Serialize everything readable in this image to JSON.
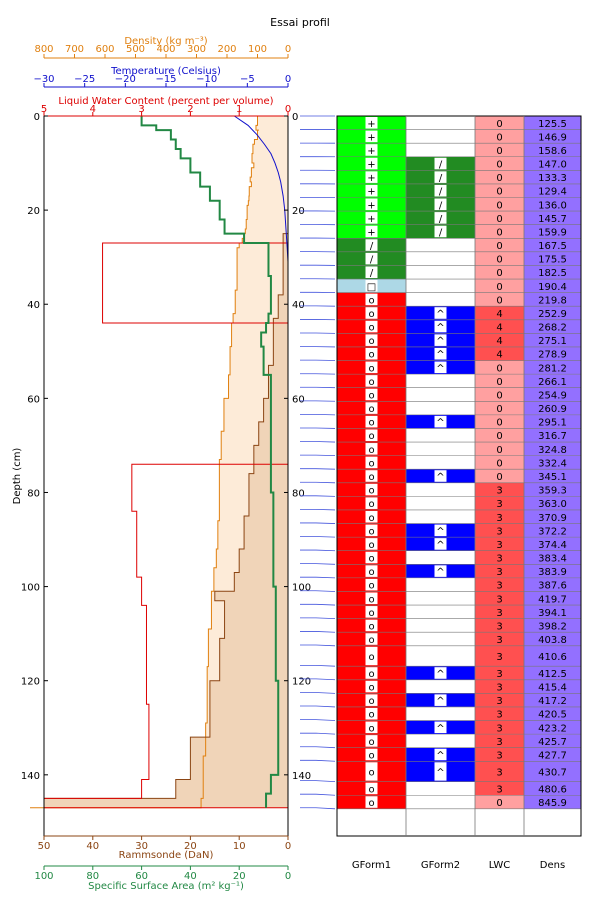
{
  "page": {
    "title": "Essai profil"
  },
  "colors": {
    "density": "#e08010",
    "temperature": "#1010cc",
    "lwc": "#dd0000",
    "ssa": "#228844",
    "rammsonde": "#8b4513",
    "density_fill": "#fdebd8",
    "ram_fill": "#f0d4b8",
    "link": "#4455dd"
  },
  "chart_data": [
    {
      "type": "line",
      "title": "",
      "ylabel": "Depth (cm)",
      "ylim": [
        0,
        153
      ],
      "yticks": [
        "0",
        "20",
        "40",
        "60",
        "80",
        "100",
        "120",
        "140"
      ],
      "inner_yticks": [
        "0",
        "20",
        "40",
        "60",
        "80",
        "100",
        "120",
        "140"
      ],
      "axes": {
        "density": {
          "label": "Density (kg m⁻³)",
          "range": [
            800,
            0
          ],
          "ticks": [
            "800",
            "700",
            "600",
            "500",
            "400",
            "300",
            "200",
            "100",
            "0"
          ]
        },
        "temperature": {
          "label": "Temperature (Celsius)",
          "range": [
            -30,
            0
          ],
          "ticks": [
            "−30",
            "−25",
            "−20",
            "−15",
            "−10",
            "−5",
            "0"
          ]
        },
        "lwc": {
          "label": "Liquid Water Content (percent per volume)",
          "range": [
            5,
            0
          ],
          "ticks": [
            "5",
            "4",
            "3",
            "2",
            "1",
            "0"
          ]
        },
        "rammsonde": {
          "label": "Rammsonde (DaN)",
          "range": [
            50,
            0
          ],
          "ticks": [
            "50",
            "40",
            "30",
            "20",
            "10",
            "0"
          ]
        },
        "ssa": {
          "label": "Specific Surface Area (m² kg⁻¹)",
          "range": [
            100,
            0
          ],
          "ticks": [
            "100",
            "80",
            "60",
            "40",
            "20",
            "0"
          ]
        }
      },
      "series": {
        "density": [
          [
            0,
            100
          ],
          [
            2,
            105
          ],
          [
            3,
            95
          ],
          [
            3,
            100
          ],
          [
            5,
            110
          ],
          [
            6,
            115
          ],
          [
            8,
            118
          ],
          [
            10,
            112
          ],
          [
            11,
            120
          ],
          [
            13,
            124
          ],
          [
            14,
            120
          ],
          [
            15,
            127
          ],
          [
            17,
            128
          ],
          [
            18,
            130
          ],
          [
            19,
            134
          ],
          [
            22,
            137
          ],
          [
            24,
            140
          ],
          [
            25,
            145
          ],
          [
            26,
            150
          ],
          [
            27,
            160
          ],
          [
            28,
            167
          ],
          [
            37,
            173
          ],
          [
            42,
            180
          ],
          [
            44,
            185
          ],
          [
            49,
            190
          ],
          [
            55,
            195
          ],
          [
            60,
            210
          ],
          [
            67,
            219
          ],
          [
            73,
            225
          ],
          [
            86,
            230
          ],
          [
            92,
            235
          ],
          [
            96,
            243
          ],
          [
            101,
            251
          ],
          [
            109,
            261
          ],
          [
            117,
            265
          ],
          [
            129,
            270
          ],
          [
            136,
            278
          ],
          [
            145,
            285
          ],
          [
            147,
            845.9
          ]
        ],
        "temperature": [
          [
            0,
            -6.6
          ],
          [
            2,
            -4.9
          ],
          [
            4,
            -3.8
          ],
          [
            6,
            -2.9
          ],
          [
            8,
            -2.1
          ],
          [
            10,
            -1.6
          ],
          [
            12,
            -1.2
          ],
          [
            14,
            -0.9
          ],
          [
            17,
            -0.6
          ],
          [
            20,
            -0.4
          ],
          [
            24,
            -0.25
          ],
          [
            28,
            -0.1
          ],
          [
            31,
            0
          ]
        ],
        "lwc": [
          [
            0,
            0
          ],
          [
            27,
            0
          ],
          [
            27,
            3.8
          ],
          [
            44,
            3.8
          ],
          [
            44,
            0
          ],
          [
            74,
            0
          ],
          [
            74,
            3.2
          ],
          [
            84,
            3.2
          ],
          [
            84,
            3.1
          ],
          [
            98,
            3.1
          ],
          [
            98,
            3.0
          ],
          [
            104,
            3.0
          ],
          [
            104,
            2.9
          ],
          [
            125,
            2.9
          ],
          [
            125,
            2.85
          ],
          [
            141,
            2.85
          ],
          [
            141,
            3.0
          ],
          [
            145,
            3.0
          ],
          [
            145,
            5.0
          ],
          [
            147,
            5.0
          ],
          [
            147,
            0
          ]
        ],
        "rammsonde": [
          [
            0,
            0
          ],
          [
            25,
            0
          ],
          [
            25,
            1
          ],
          [
            38,
            1
          ],
          [
            38,
            2
          ],
          [
            43,
            2
          ],
          [
            43,
            3
          ],
          [
            47,
            3
          ],
          [
            53,
            3
          ],
          [
            53,
            4
          ],
          [
            60,
            4
          ],
          [
            60,
            5
          ],
          [
            65,
            6
          ],
          [
            70,
            7
          ],
          [
            76,
            8
          ],
          [
            85,
            9
          ],
          [
            92,
            10
          ],
          [
            97,
            11
          ],
          [
            101,
            12
          ],
          [
            101,
            15
          ],
          [
            103,
            15
          ],
          [
            103,
            13
          ],
          [
            111,
            13
          ],
          [
            111,
            14
          ],
          [
            120,
            14
          ],
          [
            120,
            16
          ],
          [
            132,
            16
          ],
          [
            132,
            20
          ],
          [
            141,
            20
          ],
          [
            141,
            23
          ],
          [
            145,
            23
          ],
          [
            145,
            50
          ],
          [
            147,
            50
          ]
        ],
        "ssa": [
          [
            0,
            60
          ],
          [
            2,
            60
          ],
          [
            2,
            54
          ],
          [
            3,
            54
          ],
          [
            3,
            48
          ],
          [
            5,
            48
          ],
          [
            5,
            46
          ],
          [
            7,
            46
          ],
          [
            7,
            44
          ],
          [
            9,
            44
          ],
          [
            9,
            40
          ],
          [
            12,
            40
          ],
          [
            12,
            36
          ],
          [
            15,
            36
          ],
          [
            15,
            32
          ],
          [
            18,
            32
          ],
          [
            18,
            28
          ],
          [
            22,
            28
          ],
          [
            22,
            26
          ],
          [
            25,
            26
          ],
          [
            25,
            18
          ],
          [
            27,
            18
          ],
          [
            27,
            8
          ],
          [
            34,
            8
          ],
          [
            34,
            7
          ],
          [
            42,
            7
          ],
          [
            42,
            8
          ],
          [
            44,
            8
          ],
          [
            44,
            9
          ],
          [
            46,
            9
          ],
          [
            46,
            11
          ],
          [
            49,
            11
          ],
          [
            49,
            10
          ],
          [
            55,
            10
          ],
          [
            55,
            7
          ],
          [
            80,
            7
          ],
          [
            80,
            6
          ],
          [
            100,
            6
          ],
          [
            100,
            5
          ],
          [
            120,
            5
          ],
          [
            120,
            4
          ],
          [
            140,
            4
          ],
          [
            140,
            7
          ],
          [
            144,
            7
          ],
          [
            144,
            9
          ],
          [
            147,
            9
          ]
        ]
      }
    },
    {
      "type": "table",
      "columns": [
        "GForm1",
        "GForm2",
        "LWC",
        "Dens"
      ],
      "layers": [
        {
          "top": 0,
          "bottom": 2,
          "g1": "+",
          "g2": "",
          "lwc": "0",
          "dens": "125.5"
        },
        {
          "top": 2,
          "bottom": 4,
          "g1": "+",
          "g2": "",
          "lwc": "0",
          "dens": "146.9"
        },
        {
          "top": 4,
          "bottom": 6,
          "g1": "+",
          "g2": "",
          "lwc": "0",
          "dens": "158.6"
        },
        {
          "top": 6,
          "bottom": 8,
          "g1": "+",
          "g2": "/",
          "lwc": "0",
          "dens": "147.0"
        },
        {
          "top": 8,
          "bottom": 10,
          "g1": "+",
          "g2": "/",
          "lwc": "0",
          "dens": "133.3"
        },
        {
          "top": 10,
          "bottom": 12,
          "g1": "+",
          "g2": "/",
          "lwc": "0",
          "dens": "129.4"
        },
        {
          "top": 12,
          "bottom": 14,
          "g1": "+",
          "g2": "/",
          "lwc": "0",
          "dens": "136.0"
        },
        {
          "top": 14,
          "bottom": 16,
          "g1": "+",
          "g2": "/",
          "lwc": "0",
          "dens": "145.7"
        },
        {
          "top": 16,
          "bottom": 18,
          "g1": "+",
          "g2": "/",
          "lwc": "0",
          "dens": "159.9"
        },
        {
          "top": 18,
          "bottom": 20,
          "g1": "/",
          "g2": "",
          "lwc": "0",
          "dens": "167.5"
        },
        {
          "top": 20,
          "bottom": 22,
          "g1": "/",
          "g2": "",
          "lwc": "0",
          "dens": "175.5"
        },
        {
          "top": 22,
          "bottom": 24,
          "g1": "/",
          "g2": "",
          "lwc": "0",
          "dens": "182.5"
        },
        {
          "top": 24,
          "bottom": 26,
          "g1": "□",
          "g2": "",
          "lwc": "0",
          "dens": "190.4"
        },
        {
          "top": 26,
          "bottom": 28,
          "g1": "o",
          "g2": "",
          "lwc": "0",
          "dens": "219.8"
        },
        {
          "top": 28,
          "bottom": 30,
          "g1": "o",
          "g2": "^",
          "lwc": "4",
          "dens": "252.9"
        },
        {
          "top": 30,
          "bottom": 32,
          "g1": "o",
          "g2": "^",
          "lwc": "4",
          "dens": "268.2"
        },
        {
          "top": 32,
          "bottom": 34,
          "g1": "o",
          "g2": "^",
          "lwc": "4",
          "dens": "275.1"
        },
        {
          "top": 34,
          "bottom": 36,
          "g1": "o",
          "g2": "^",
          "lwc": "4",
          "dens": "278.9"
        },
        {
          "top": 36,
          "bottom": 38,
          "g1": "o",
          "g2": "^",
          "lwc": "0",
          "dens": "281.2"
        },
        {
          "top": 38,
          "bottom": 40,
          "g1": "o",
          "g2": "",
          "lwc": "0",
          "dens": "266.1"
        },
        {
          "top": 40,
          "bottom": 42,
          "g1": "o",
          "g2": "",
          "lwc": "0",
          "dens": "254.9"
        },
        {
          "top": 42,
          "bottom": 44,
          "g1": "o",
          "g2": "",
          "lwc": "0",
          "dens": "260.9"
        },
        {
          "top": 44,
          "bottom": 46,
          "g1": "o",
          "g2": "^",
          "lwc": "0",
          "dens": "295.1"
        },
        {
          "top": 46,
          "bottom": 48,
          "g1": "o",
          "g2": "",
          "lwc": "0",
          "dens": "316.7"
        },
        {
          "top": 48,
          "bottom": 50,
          "g1": "o",
          "g2": "",
          "lwc": "0",
          "dens": "324.8"
        },
        {
          "top": 50,
          "bottom": 52,
          "g1": "o",
          "g2": "",
          "lwc": "0",
          "dens": "332.4"
        },
        {
          "top": 52,
          "bottom": 54,
          "g1": "o",
          "g2": "^",
          "lwc": "0",
          "dens": "345.1"
        },
        {
          "top": 54,
          "bottom": 56,
          "g1": "o",
          "g2": "",
          "lwc": "3",
          "dens": "359.3"
        },
        {
          "top": 56,
          "bottom": 58,
          "g1": "o",
          "g2": "",
          "lwc": "3",
          "dens": "363.0"
        },
        {
          "top": 58,
          "bottom": 60,
          "g1": "o",
          "g2": "",
          "lwc": "3",
          "dens": "370.9"
        },
        {
          "top": 60,
          "bottom": 62,
          "g1": "o",
          "g2": "^",
          "lwc": "3",
          "dens": "372.2"
        },
        {
          "top": 62,
          "bottom": 64,
          "g1": "o",
          "g2": "^",
          "lwc": "3",
          "dens": "374.4"
        },
        {
          "top": 64,
          "bottom": 66,
          "g1": "o",
          "g2": "",
          "lwc": "3",
          "dens": "383.4"
        },
        {
          "top": 66,
          "bottom": 68,
          "g1": "o",
          "g2": "^",
          "lwc": "3",
          "dens": "383.9"
        },
        {
          "top": 68,
          "bottom": 70,
          "g1": "o",
          "g2": "",
          "lwc": "3",
          "dens": "387.6"
        },
        {
          "top": 70,
          "bottom": 72,
          "g1": "o",
          "g2": "",
          "lwc": "3",
          "dens": "419.7"
        },
        {
          "top": 72,
          "bottom": 74,
          "g1": "o",
          "g2": "",
          "lwc": "3",
          "dens": "394.1"
        },
        {
          "top": 74,
          "bottom": 76,
          "g1": "o",
          "g2": "",
          "lwc": "3",
          "dens": "398.2"
        },
        {
          "top": 76,
          "bottom": 78,
          "g1": "o",
          "g2": "",
          "lwc": "3",
          "dens": "403.8"
        },
        {
          "top": 78,
          "bottom": 81,
          "g1": "o",
          "g2": "",
          "lwc": "3",
          "dens": "410.6"
        },
        {
          "top": 81,
          "bottom": 83,
          "g1": "o",
          "g2": "^",
          "lwc": "3",
          "dens": "412.5"
        },
        {
          "top": 83,
          "bottom": 85,
          "g1": "o",
          "g2": "",
          "lwc": "3",
          "dens": "415.4"
        },
        {
          "top": 85,
          "bottom": 87,
          "g1": "o",
          "g2": "^",
          "lwc": "3",
          "dens": "417.2"
        },
        {
          "top": 87,
          "bottom": 89,
          "g1": "o",
          "g2": "",
          "lwc": "3",
          "dens": "420.5"
        },
        {
          "top": 89,
          "bottom": 91,
          "g1": "o",
          "g2": "^",
          "lwc": "3",
          "dens": "423.2"
        },
        {
          "top": 91,
          "bottom": 93,
          "g1": "o",
          "g2": "",
          "lwc": "3",
          "dens": "425.7"
        },
        {
          "top": 93,
          "bottom": 95,
          "g1": "o",
          "g2": "^",
          "lwc": "3",
          "dens": "427.7"
        },
        {
          "top": 95,
          "bottom": 98,
          "g1": "o",
          "g2": "^",
          "lwc": "3",
          "dens": "430.7"
        },
        {
          "top": 98,
          "bottom": 100,
          "g1": "o",
          "g2": "",
          "lwc": "3",
          "dens": "480.6"
        },
        {
          "top": 100,
          "bottom": 102,
          "g1": "o",
          "g2": "",
          "lwc": "0",
          "dens": "845.9"
        }
      ],
      "rows_total": 106
    }
  ]
}
